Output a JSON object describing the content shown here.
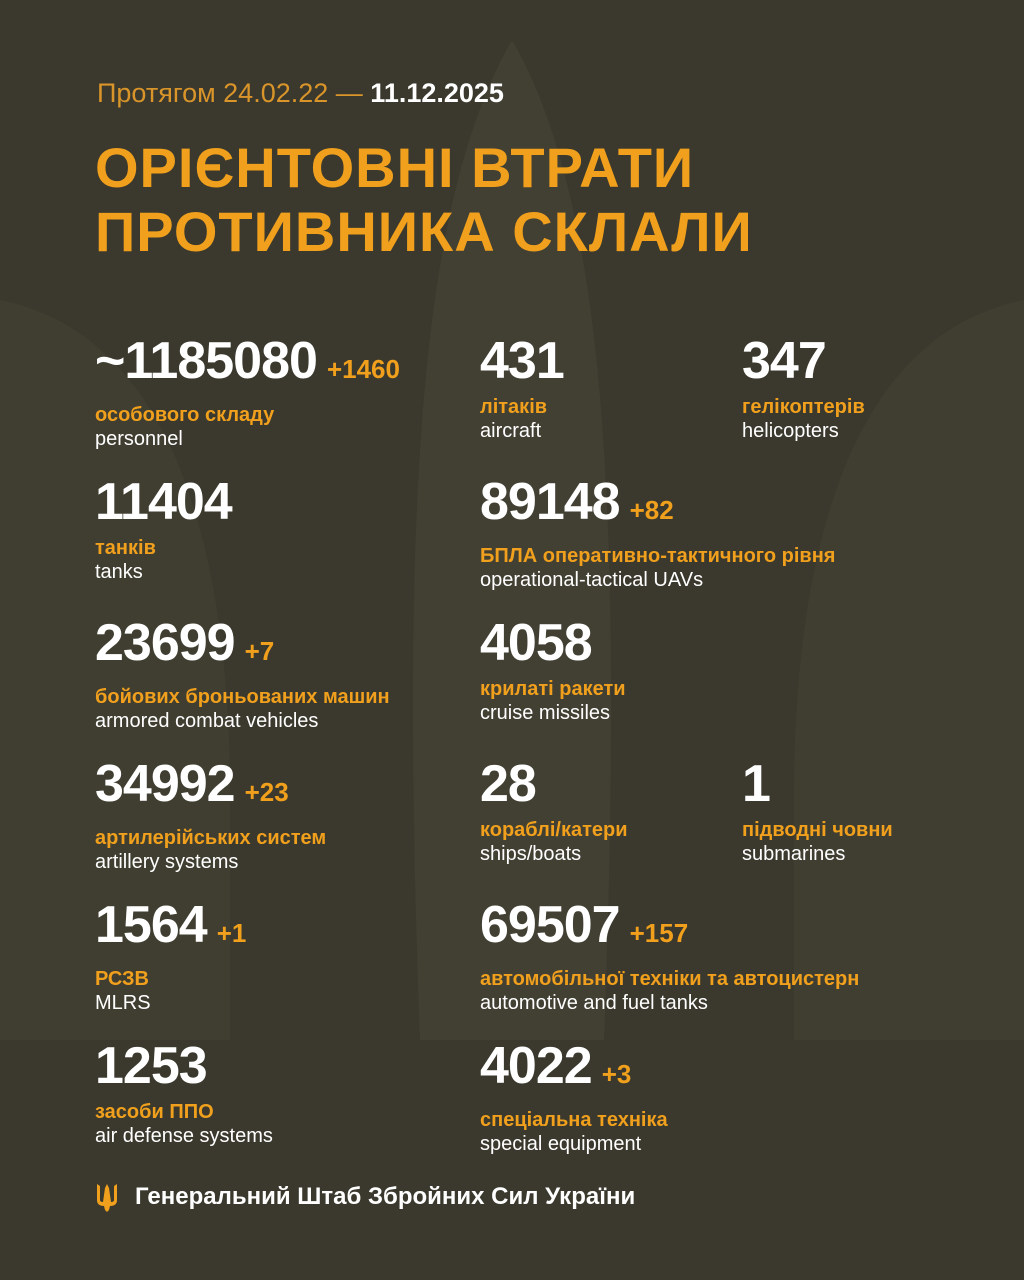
{
  "colors": {
    "background": "#3b392d",
    "accent": "#f0a01c"
  },
  "header": {
    "period_prefix": "Протягом 24.02.22 —",
    "period_end": "11.12.2025",
    "title_line1": "ОРІЄНТОВНІ ВТРАТИ",
    "title_line2": "ПРОТИВНИКА СКЛАЛИ"
  },
  "items": [
    {
      "value": "~1185080",
      "delta": "+1460",
      "ua": "особового складу",
      "en": "personnel"
    },
    {
      "value": "431",
      "delta": "",
      "ua": "літаків",
      "en": "aircraft"
    },
    {
      "value": "347",
      "delta": "",
      "ua": "гелікоптерів",
      "en": "helicopters"
    },
    {
      "value": "11404",
      "delta": "",
      "ua": "танків",
      "en": "tanks"
    },
    {
      "value": "89148",
      "delta": "+82",
      "ua": "БПЛА оперативно-тактичного рівня",
      "en": "operational-tactical UAVs"
    },
    {
      "value": "23699",
      "delta": "+7",
      "ua": "бойових броньованих машин",
      "en": "armored combat vehicles"
    },
    {
      "value": "4058",
      "delta": "",
      "ua": "крилаті ракети",
      "en": "cruise missiles"
    },
    {
      "value": "34992",
      "delta": "+23",
      "ua": "артилерійських систем",
      "en": "artillery systems"
    },
    {
      "value": "28",
      "delta": "",
      "ua": "кораблі/катери",
      "en": "ships/boats"
    },
    {
      "value": "1",
      "delta": "",
      "ua": "підводні човни",
      "en": "submarines"
    },
    {
      "value": "1564",
      "delta": "+1",
      "ua": "РСЗВ",
      "en": "MLRS"
    },
    {
      "value": "69507",
      "delta": "+157",
      "ua": "автомобільної техніки та автоцистерн",
      "en": "automotive and fuel tanks"
    },
    {
      "value": "1253",
      "delta": "",
      "ua": "засоби ППО",
      "en": "air defense systems"
    },
    {
      "value": "4022",
      "delta": "+3",
      "ua": "спеціальна техніка",
      "en": "special equipment"
    }
  ],
  "footer": {
    "icon": "trident-icon",
    "text": "Генеральний Штаб Збройних Сил України"
  }
}
